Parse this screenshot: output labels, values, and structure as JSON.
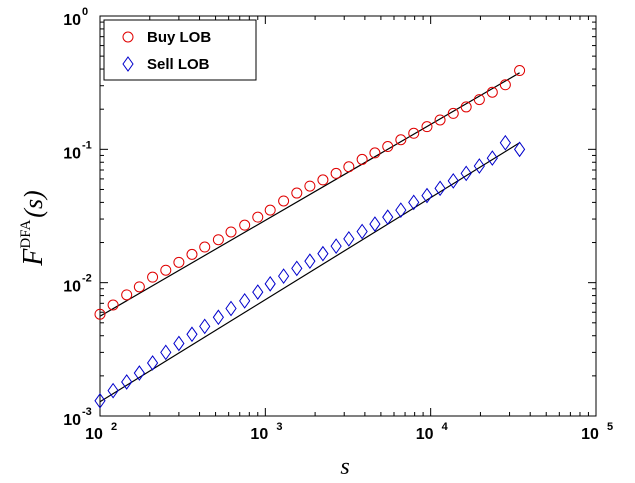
{
  "chart_data": {
    "type": "scatter",
    "x_scale": "log",
    "y_scale": "log",
    "xlim": [
      100,
      100000
    ],
    "ylim": [
      0.001,
      1
    ],
    "xlabel": "s",
    "ylabel": {
      "main": "F",
      "superscript": "DFA",
      "suffix": "(s)"
    },
    "x_ticks": [
      {
        "base": "10",
        "exp": "2"
      },
      {
        "base": "10",
        "exp": "3"
      },
      {
        "base": "10",
        "exp": "4"
      },
      {
        "base": "10",
        "exp": "5"
      }
    ],
    "y_ticks": [
      {
        "base": "10",
        "exp": "-3"
      },
      {
        "base": "10",
        "exp": "-2"
      },
      {
        "base": "10",
        "exp": "-1"
      },
      {
        "base": "10",
        "exp": "0"
      }
    ],
    "grid": false,
    "legend_position": "top-left",
    "series": [
      {
        "name": "Buy LOB",
        "marker": "circle",
        "color": "#e00000",
        "x": [
          100,
          120,
          145,
          173,
          208,
          250,
          300,
          360,
          430,
          520,
          620,
          750,
          900,
          1070,
          1290,
          1550,
          1860,
          2230,
          2680,
          3200,
          3850,
          4600,
          5500,
          6600,
          7900,
          9500,
          11400,
          13700,
          16400,
          19700,
          23600,
          28300,
          34500
        ],
        "y": [
          0.0058,
          0.0068,
          0.0081,
          0.0093,
          0.011,
          0.0124,
          0.0142,
          0.0163,
          0.0185,
          0.021,
          0.024,
          0.027,
          0.031,
          0.035,
          0.041,
          0.047,
          0.053,
          0.059,
          0.066,
          0.074,
          0.084,
          0.094,
          0.105,
          0.118,
          0.132,
          0.148,
          0.166,
          0.186,
          0.208,
          0.236,
          0.268,
          0.305,
          0.39
        ],
        "fit": {
          "x": [
            100,
            34500
          ],
          "y": [
            0.0056,
            0.375
          ]
        }
      },
      {
        "name": "Sell LOB",
        "marker": "diamond",
        "color": "#0000cc",
        "x": [
          100,
          120,
          145,
          173,
          208,
          250,
          300,
          360,
          430,
          520,
          620,
          750,
          900,
          1070,
          1290,
          1550,
          1860,
          2230,
          2680,
          3200,
          3850,
          4600,
          5500,
          6600,
          7900,
          9500,
          11400,
          13700,
          16400,
          19700,
          23600,
          28300,
          34500
        ],
        "y": [
          0.0013,
          0.00155,
          0.0018,
          0.0021,
          0.0025,
          0.003,
          0.0035,
          0.0041,
          0.0047,
          0.0055,
          0.0064,
          0.0073,
          0.0085,
          0.0098,
          0.0112,
          0.0128,
          0.0145,
          0.0165,
          0.0188,
          0.0213,
          0.0242,
          0.0275,
          0.031,
          0.035,
          0.04,
          0.045,
          0.051,
          0.058,
          0.066,
          0.075,
          0.086,
          0.112,
          0.1
        ],
        "fit": {
          "x": [
            100,
            34500
          ],
          "y": [
            0.00128,
            0.112
          ]
        }
      }
    ]
  }
}
